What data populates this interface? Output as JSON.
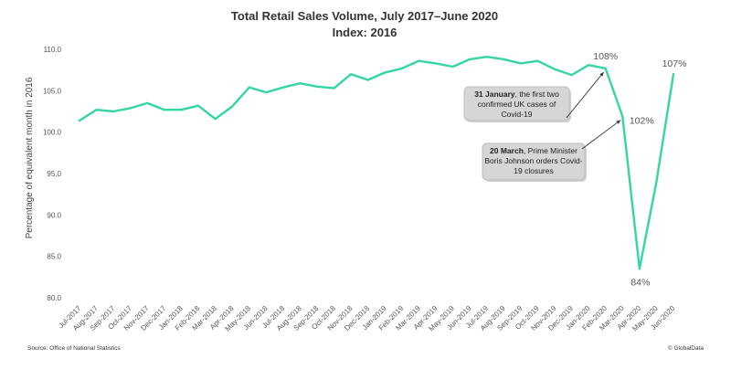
{
  "chart_data": {
    "type": "line",
    "title": "Total Retail Sales Volume, July 2017–June 2020",
    "subtitle": "Index: 2016",
    "xlabel": "",
    "ylabel": "Percentage of equivalent month in 2016",
    "ylim": [
      80,
      110
    ],
    "yticks": [
      "80.0",
      "85.0",
      "90.0",
      "95.0",
      "100.0",
      "105.0",
      "110.0"
    ],
    "grid": false,
    "line_color": "#34d6a6",
    "categories": [
      "Jul-2017",
      "Aug-2017",
      "Sep-2017",
      "Oct-2017",
      "Nov-2017",
      "Dec-2017",
      "Jan-2018",
      "Feb-2018",
      "Mar-2018",
      "Apr-2018",
      "May-2018",
      "Jun-2018",
      "Jul-2018",
      "Aug-2018",
      "Sep-2018",
      "Oct-2018",
      "Nov-2018",
      "Dec-2018",
      "Jan-2019",
      "Feb-2019",
      "Mar-2019",
      "Apr-2019",
      "May-2019",
      "Jun-2019",
      "Jul-2019",
      "Aug-2019",
      "Sep-2019",
      "Oct-2019",
      "Nov-2019",
      "Dec-2019",
      "Jan-2020",
      "Feb-2020",
      "Mar-2020",
      "Apr-2020",
      "May-2020",
      "Jun-2020"
    ],
    "values": [
      101.4,
      102.7,
      102.5,
      102.9,
      103.5,
      102.7,
      102.7,
      103.2,
      101.6,
      103.1,
      105.4,
      104.8,
      105.4,
      105.9,
      105.5,
      105.3,
      107.0,
      106.3,
      107.2,
      107.7,
      108.6,
      108.3,
      107.9,
      108.8,
      109.1,
      108.8,
      108.3,
      108.6,
      107.6,
      106.9,
      108.1,
      107.7,
      101.9,
      83.5,
      94.0,
      107.0
    ],
    "point_labels": [
      {
        "index": 31,
        "text": "108%"
      },
      {
        "index": 32,
        "text": "102%"
      },
      {
        "index": 33,
        "text": "84%"
      },
      {
        "index": 35,
        "text": "107%"
      }
    ],
    "annotations": [
      {
        "bold": "31 January",
        "lines": [
          ", the first two",
          "confirmed UK cases of",
          "Covid-19"
        ],
        "target_index": 31
      },
      {
        "bold": "20 March",
        "lines": [
          ", Prime Minister",
          "Boris Johnson orders Covid-",
          "19 closures"
        ],
        "target_index": 32
      }
    ]
  },
  "footer": {
    "source": "Source: Office of National Statistics",
    "credit": "© GlobalData"
  }
}
